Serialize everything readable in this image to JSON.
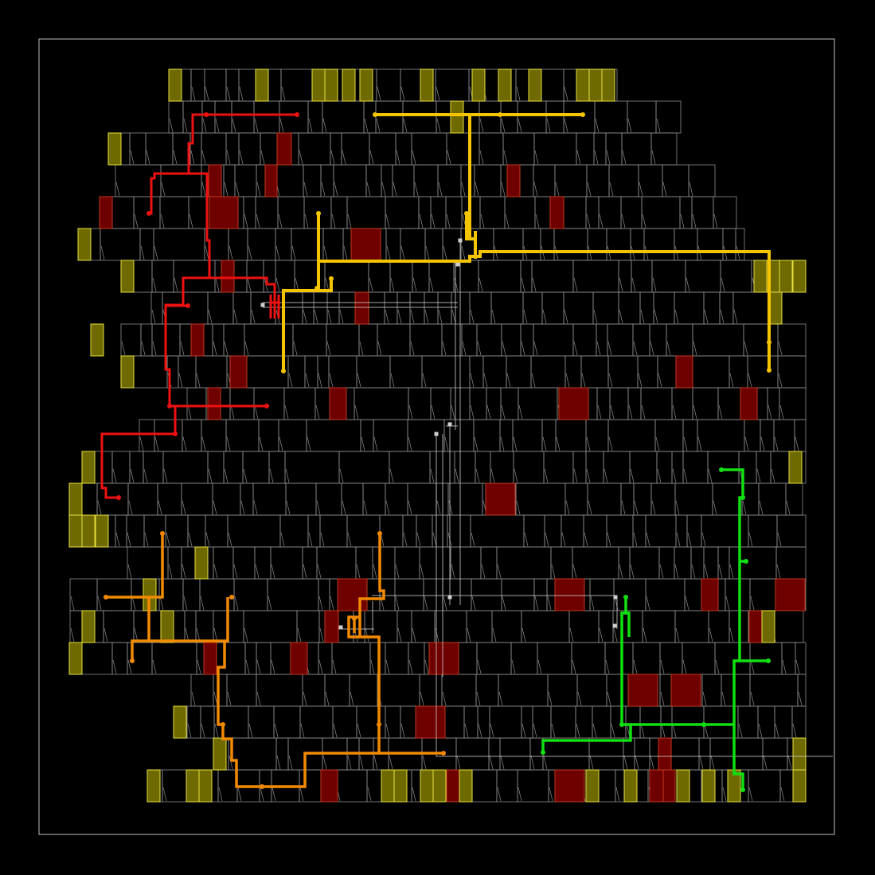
{
  "layout_view": {
    "background": "#000000",
    "outline_color": "#bfbfbf",
    "cell_stroke": "#8c8c8c",
    "highlight_cells": {
      "fill": "#6e0000",
      "stroke": "#c23a1a"
    },
    "io_pads": {
      "fill": "#6e6a00",
      "stroke": "#e8e040"
    },
    "nets": [
      {
        "color": "#ee1111",
        "label": ""
      },
      {
        "color": "#f5c400",
        "label": ""
      },
      {
        "color": "#f28a00",
        "label": ""
      },
      {
        "color": "#11e011",
        "label": ""
      },
      {
        "color": "#cfcfcf",
        "label": ""
      }
    ],
    "grid_on": false
  }
}
